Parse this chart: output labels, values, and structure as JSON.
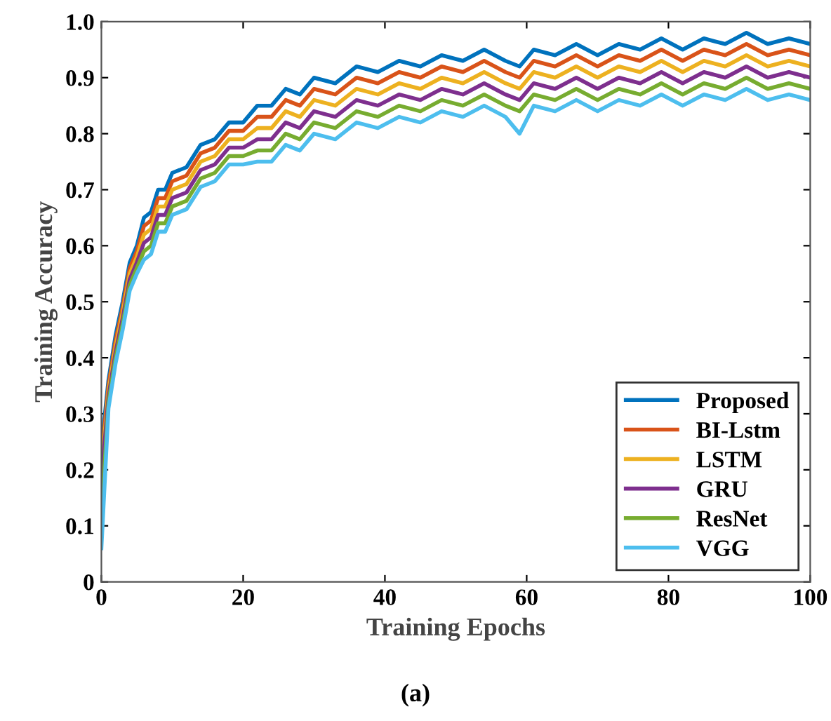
{
  "chart_data": {
    "type": "line",
    "xlabel": "Training Epochs",
    "ylabel": "Training Accuracy",
    "annotations": [
      "(a)"
    ],
    "x": [
      0,
      1,
      2,
      3,
      4,
      5,
      6,
      7,
      8,
      9,
      10,
      12,
      14,
      16,
      18,
      20,
      22,
      24,
      26,
      28,
      30,
      33,
      36,
      39,
      42,
      45,
      48,
      51,
      54,
      57,
      59,
      61,
      64,
      67,
      70,
      73,
      76,
      79,
      82,
      85,
      88,
      91,
      94,
      97,
      100
    ],
    "xlim": [
      0,
      100
    ],
    "xticks": [
      0,
      20,
      40,
      60,
      80,
      100
    ],
    "ylim": [
      0,
      1
    ],
    "yticks": [
      0,
      0.1,
      0.2,
      0.3,
      0.4,
      0.5,
      0.6,
      0.7,
      0.8,
      0.9,
      {
        "value": 1,
        "label": "1.0"
      }
    ],
    "grid": false,
    "legend": "bottom right",
    "marker": "none",
    "line_style": "solid",
    "series": [
      {
        "name": "Proposed",
        "color": "#0072bd",
        "values": [
          0.24,
          0.36,
          0.44,
          0.5,
          0.57,
          0.6,
          0.65,
          0.66,
          0.7,
          0.7,
          0.73,
          0.74,
          0.78,
          0.79,
          0.82,
          0.82,
          0.85,
          0.85,
          0.88,
          0.87,
          0.9,
          0.89,
          0.92,
          0.91,
          0.93,
          0.92,
          0.94,
          0.93,
          0.95,
          0.93,
          0.92,
          0.95,
          0.94,
          0.96,
          0.94,
          0.96,
          0.95,
          0.97,
          0.95,
          0.97,
          0.96,
          0.98,
          0.96,
          0.97,
          0.96
        ]
      },
      {
        "name": "BI-Lstm",
        "color": "#d95319",
        "values": [
          0.22,
          0.35,
          0.43,
          0.49,
          0.56,
          0.59,
          0.635,
          0.645,
          0.685,
          0.685,
          0.715,
          0.725,
          0.765,
          0.775,
          0.805,
          0.805,
          0.83,
          0.83,
          0.86,
          0.85,
          0.88,
          0.87,
          0.9,
          0.89,
          0.91,
          0.9,
          0.92,
          0.91,
          0.93,
          0.91,
          0.9,
          0.93,
          0.92,
          0.94,
          0.92,
          0.94,
          0.93,
          0.95,
          0.93,
          0.95,
          0.94,
          0.96,
          0.94,
          0.95,
          0.94
        ]
      },
      {
        "name": "LSTM",
        "color": "#edb120",
        "values": [
          0.2,
          0.34,
          0.42,
          0.48,
          0.55,
          0.58,
          0.62,
          0.63,
          0.67,
          0.67,
          0.7,
          0.71,
          0.75,
          0.76,
          0.79,
          0.79,
          0.81,
          0.81,
          0.84,
          0.83,
          0.86,
          0.85,
          0.88,
          0.87,
          0.89,
          0.88,
          0.9,
          0.89,
          0.91,
          0.89,
          0.88,
          0.91,
          0.9,
          0.92,
          0.9,
          0.92,
          0.91,
          0.93,
          0.91,
          0.93,
          0.92,
          0.94,
          0.92,
          0.93,
          0.92
        ]
      },
      {
        "name": "GRU",
        "color": "#7e2f8e",
        "values": [
          0.18,
          0.33,
          0.41,
          0.47,
          0.54,
          0.57,
          0.605,
          0.615,
          0.655,
          0.655,
          0.685,
          0.695,
          0.735,
          0.745,
          0.775,
          0.775,
          0.79,
          0.79,
          0.82,
          0.81,
          0.84,
          0.83,
          0.86,
          0.85,
          0.87,
          0.86,
          0.88,
          0.87,
          0.89,
          0.87,
          0.86,
          0.89,
          0.88,
          0.9,
          0.88,
          0.9,
          0.89,
          0.91,
          0.89,
          0.91,
          0.9,
          0.92,
          0.9,
          0.91,
          0.9
        ]
      },
      {
        "name": "ResNet",
        "color": "#77ac30",
        "values": [
          0.12,
          0.32,
          0.4,
          0.46,
          0.53,
          0.56,
          0.59,
          0.6,
          0.64,
          0.64,
          0.67,
          0.68,
          0.72,
          0.73,
          0.76,
          0.76,
          0.77,
          0.77,
          0.8,
          0.79,
          0.82,
          0.81,
          0.84,
          0.83,
          0.85,
          0.84,
          0.86,
          0.85,
          0.87,
          0.85,
          0.84,
          0.87,
          0.86,
          0.88,
          0.86,
          0.88,
          0.87,
          0.89,
          0.87,
          0.89,
          0.88,
          0.9,
          0.88,
          0.89,
          0.88
        ]
      },
      {
        "name": "VGG",
        "color": "#4dbeee",
        "values": [
          0.06,
          0.31,
          0.39,
          0.45,
          0.52,
          0.55,
          0.575,
          0.585,
          0.625,
          0.625,
          0.655,
          0.665,
          0.705,
          0.715,
          0.745,
          0.745,
          0.75,
          0.75,
          0.78,
          0.77,
          0.8,
          0.79,
          0.82,
          0.81,
          0.83,
          0.82,
          0.84,
          0.83,
          0.85,
          0.83,
          0.8,
          0.85,
          0.84,
          0.86,
          0.84,
          0.86,
          0.85,
          0.87,
          0.85,
          0.87,
          0.86,
          0.88,
          0.86,
          0.87,
          0.86
        ]
      }
    ]
  }
}
